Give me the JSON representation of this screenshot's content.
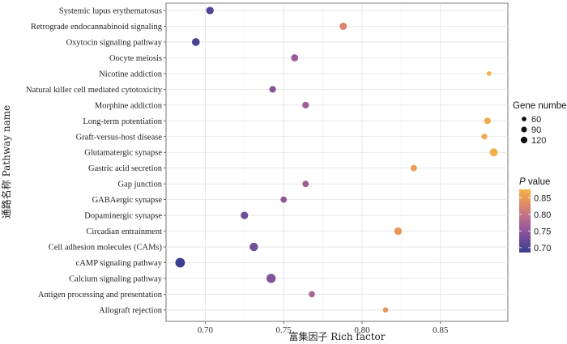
{
  "chart_data": {
    "type": "scatter",
    "title": "",
    "xlabel": "富集因子 Rich factor",
    "ylabel": "通路名称 Pathway name",
    "xlim": [
      0.675,
      0.893
    ],
    "xticks": [
      0.7,
      0.75,
      0.8,
      0.85
    ],
    "xtick_labels": [
      "0.70",
      "0.75",
      "0.80",
      "0.85"
    ],
    "grid": true,
    "points": [
      {
        "pathway": "Systemic lupus erythematosus",
        "rich_factor": 0.703,
        "gene_number": 80,
        "p_value": 0.705
      },
      {
        "pathway": "Retrograde endocannabinoid signaling",
        "rich_factor": 0.788,
        "gene_number": 75,
        "p_value": 0.82
      },
      {
        "pathway": "Oxytocin signaling pathway",
        "rich_factor": 0.694,
        "gene_number": 85,
        "p_value": 0.695
      },
      {
        "pathway": "Oocyte meiosis",
        "rich_factor": 0.757,
        "gene_number": 70,
        "p_value": 0.76
      },
      {
        "pathway": "Nicotine addiction",
        "rich_factor": 0.881,
        "gene_number": 30,
        "p_value": 0.87
      },
      {
        "pathway": "Natural killer cell mediated cytotoxicity",
        "rich_factor": 0.743,
        "gene_number": 62,
        "p_value": 0.745
      },
      {
        "pathway": "Morphine addiction",
        "rich_factor": 0.764,
        "gene_number": 62,
        "p_value": 0.765
      },
      {
        "pathway": "Long-term potentiation",
        "rich_factor": 0.88,
        "gene_number": 60,
        "p_value": 0.865
      },
      {
        "pathway": "Graft-versus-host disease",
        "rich_factor": 0.878,
        "gene_number": 48,
        "p_value": 0.865
      },
      {
        "pathway": "Glutamatergic synapse",
        "rich_factor": 0.884,
        "gene_number": 90,
        "p_value": 0.87
      },
      {
        "pathway": "Gastric acid secretion",
        "rich_factor": 0.833,
        "gene_number": 58,
        "p_value": 0.85
      },
      {
        "pathway": "Gap junction",
        "rich_factor": 0.764,
        "gene_number": 58,
        "p_value": 0.765
      },
      {
        "pathway": "GABAergic synapse",
        "rich_factor": 0.75,
        "gene_number": 55,
        "p_value": 0.752
      },
      {
        "pathway": "Dopaminergic synapse",
        "rich_factor": 0.725,
        "gene_number": 78,
        "p_value": 0.725
      },
      {
        "pathway": "Circadian entrainment",
        "rich_factor": 0.823,
        "gene_number": 80,
        "p_value": 0.845
      },
      {
        "pathway": "Cell adhesion molecules (CAMs)",
        "rich_factor": 0.731,
        "gene_number": 100,
        "p_value": 0.73
      },
      {
        "pathway": "cAMP signaling pathway",
        "rich_factor": 0.684,
        "gene_number": 130,
        "p_value": 0.685
      },
      {
        "pathway": "Calcium signaling pathway",
        "rich_factor": 0.742,
        "gene_number": 120,
        "p_value": 0.743
      },
      {
        "pathway": "Antigen processing and presentation",
        "rich_factor": 0.768,
        "gene_number": 55,
        "p_value": 0.775
      },
      {
        "pathway": "Allograft rejection",
        "rich_factor": 0.815,
        "gene_number": 40,
        "p_value": 0.84
      }
    ],
    "size_legend": {
      "title": "Gene number",
      "values": [
        60,
        90,
        120
      ],
      "labels": [
        "60",
        "90",
        "120"
      ]
    },
    "color_legend": {
      "title_italic": "P",
      "title_rest": " value",
      "range": [
        0.685,
        0.875
      ],
      "ticks": [
        0.7,
        0.75,
        0.8,
        0.85
      ],
      "tick_labels": [
        "0.70",
        "0.75",
        "0.80",
        "0.85"
      ],
      "colors": [
        "#3a3f8f",
        "#6b4a98",
        "#9b5a98",
        "#c47485",
        "#e49160",
        "#f4b246"
      ]
    }
  }
}
